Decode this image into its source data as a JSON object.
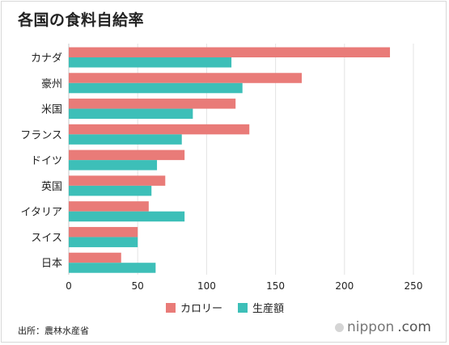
{
  "title": "各国の食料自給率",
  "source": "出所：農林水産省",
  "brand": {
    "name": "nippon",
    "tld": ".com",
    "icon": "nippon-logo-icon"
  },
  "colors": {
    "calorie": "#e97b78",
    "production": "#3dbfb8",
    "grid": "#e3e3e3",
    "axis": "#c8c8c8"
  },
  "chart_data": {
    "type": "bar",
    "orientation": "horizontal",
    "categories": [
      "カナダ",
      "豪州",
      "米国",
      "フランス",
      "ドイツ",
      "英国",
      "イタリア",
      "スイス",
      "日本"
    ],
    "series": [
      {
        "name": "カロリー",
        "values": [
          233,
          169,
          121,
          131,
          84,
          70,
          58,
          50,
          38
        ]
      },
      {
        "name": "生産額",
        "values": [
          118,
          126,
          90,
          82,
          64,
          60,
          84,
          50,
          63
        ]
      }
    ],
    "xlim": [
      0,
      250
    ],
    "xticks": [
      0,
      50,
      100,
      150,
      200,
      250
    ],
    "grid": true,
    "legend_position": "bottom"
  }
}
